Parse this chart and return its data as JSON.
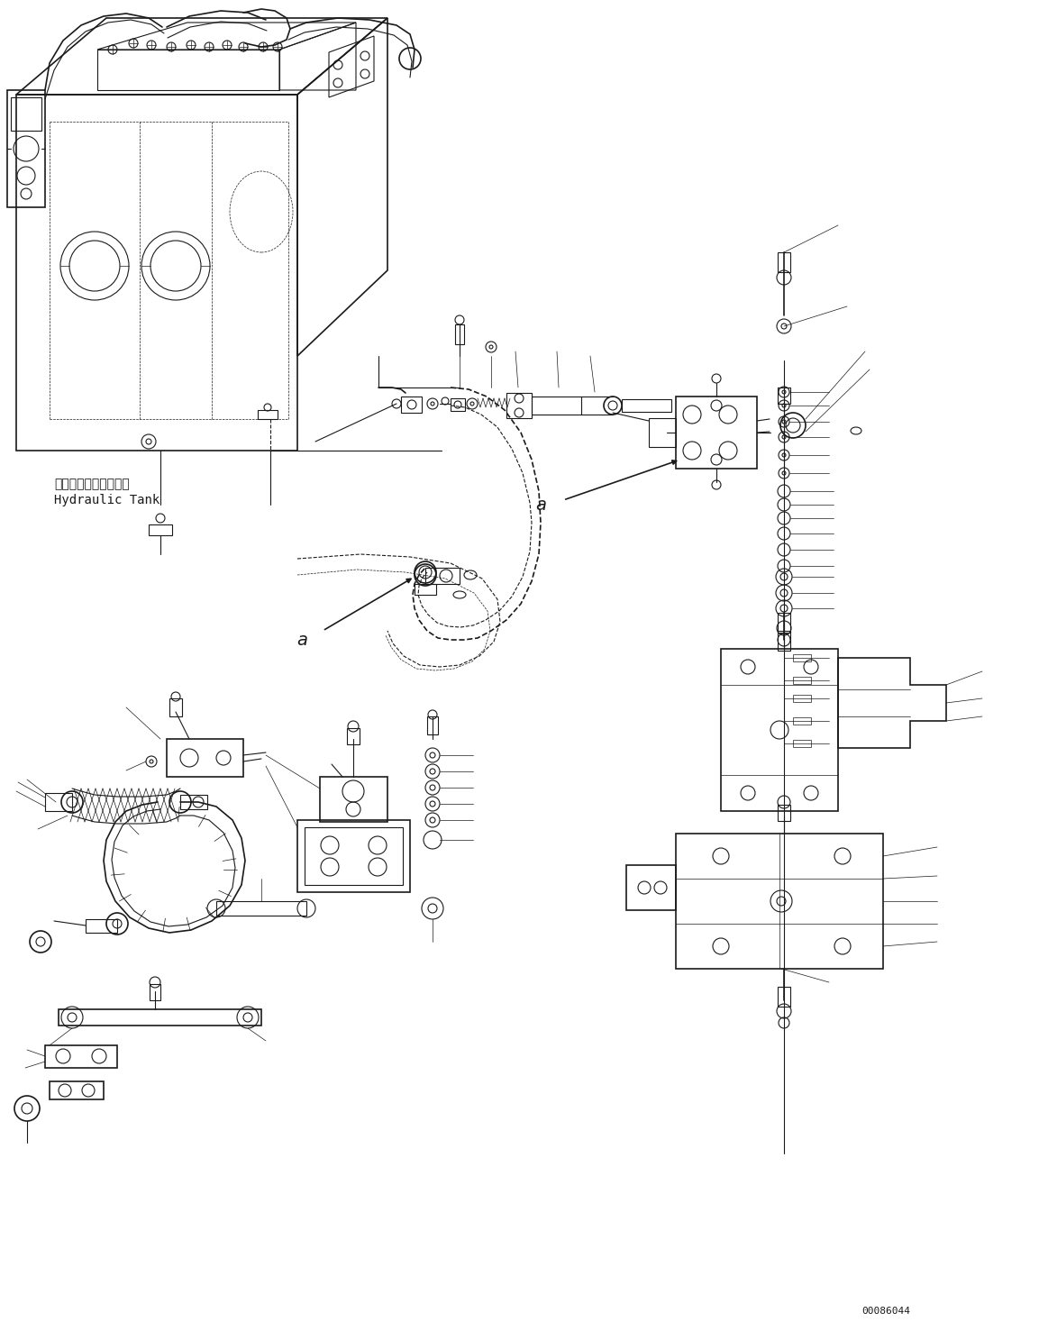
{
  "background_color": "#ffffff",
  "line_color": "#1a1a1a",
  "figure_width": 11.63,
  "figure_height": 14.67,
  "dpi": 100,
  "part_code": "00086044",
  "label_hydraulic_tank_jp": "ハイドロリックタンク",
  "label_hydraulic_tank_en": "Hydraulic Tank",
  "label_a1": "a",
  "label_a2": "a",
  "font_size_jp": 10,
  "font_size_en": 10,
  "font_size_a": 14,
  "font_size_partcode": 8
}
